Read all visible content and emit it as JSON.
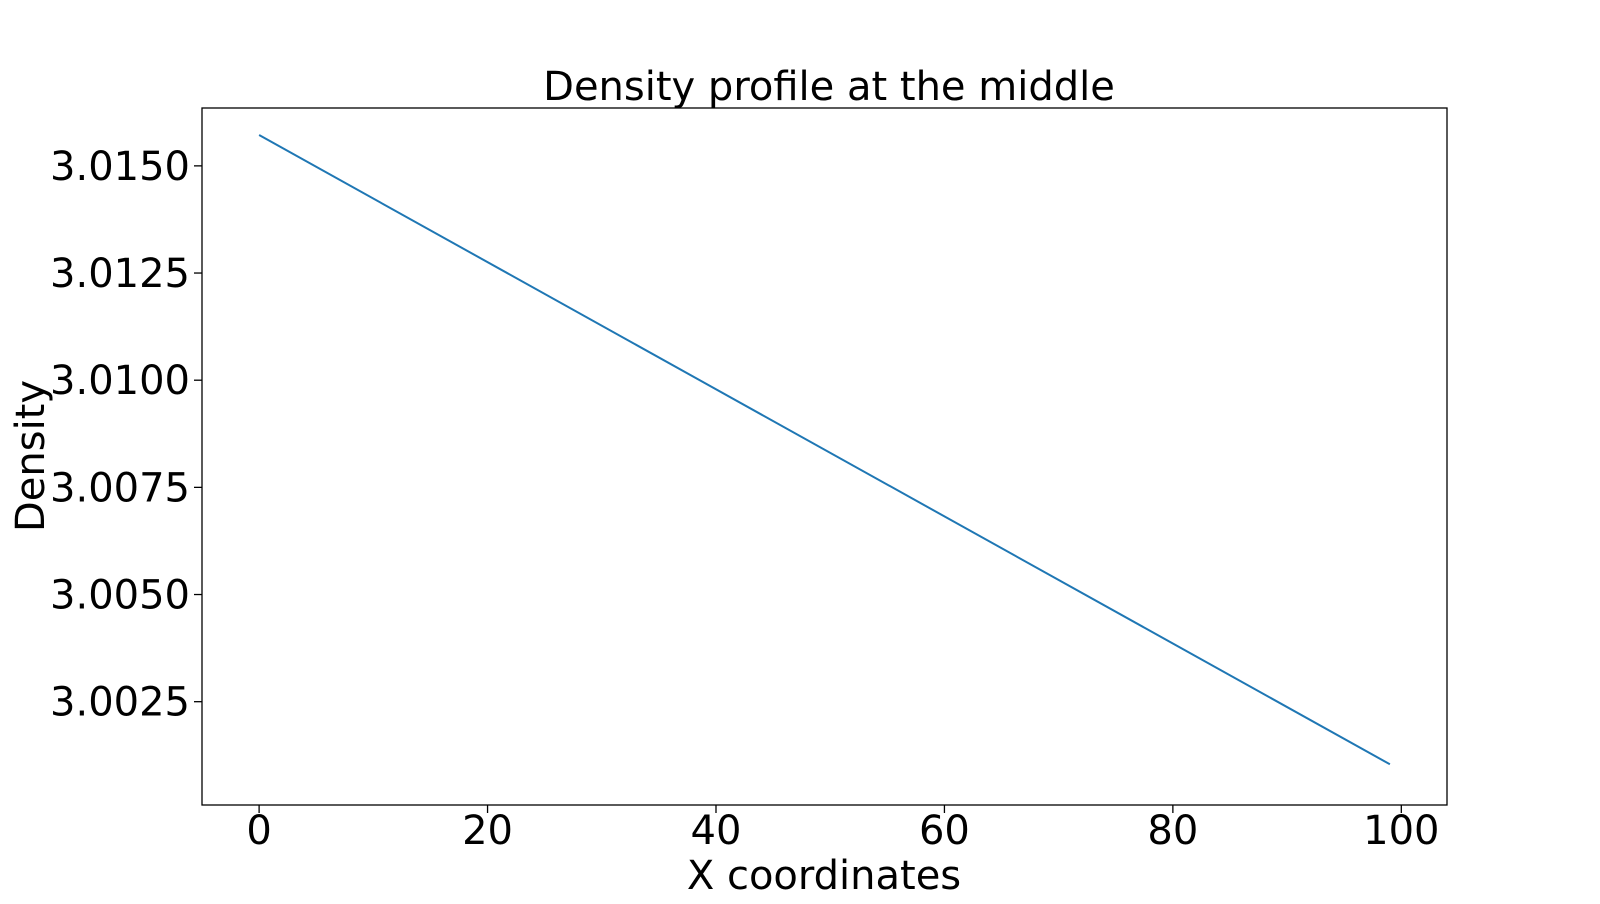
{
  "chart_data": {
    "type": "line",
    "title": "Density profile at the middle",
    "xlabel": "X coordinates",
    "ylabel": "Density",
    "xlim": [
      -5,
      104
    ],
    "ylim": [
      3.00009,
      3.01635
    ],
    "xticks": [
      0,
      20,
      40,
      60,
      80,
      100
    ],
    "xtick_labels": [
      "0",
      "20",
      "40",
      "60",
      "80",
      "100"
    ],
    "yticks": [
      3.0025,
      3.005,
      3.0075,
      3.01,
      3.0125,
      3.015
    ],
    "ytick_labels": [
      "3.0025",
      "3.0050",
      "3.0075",
      "3.0100",
      "3.0125",
      "3.0150"
    ],
    "grid": false,
    "legend": false,
    "series": [
      {
        "color": "#1f77b4",
        "x": [
          0,
          99
        ],
        "y": [
          3.01572,
          3.00104
        ]
      }
    ]
  }
}
